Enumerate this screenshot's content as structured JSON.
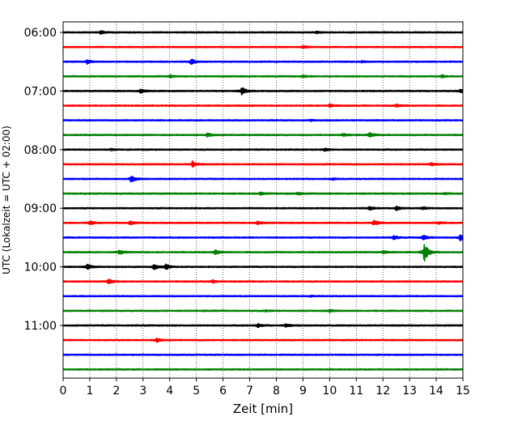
{
  "chart_data": {
    "type": "line",
    "title": "",
    "xlabel": "Zeit  [min]",
    "ylabel": "UTC (Lokalzeit = UTC + 02:00)",
    "xlim": [
      0,
      15
    ],
    "x_ticks": [
      "0",
      "1",
      "2",
      "3",
      "4",
      "5",
      "6",
      "7",
      "8",
      "9",
      "10",
      "11",
      "12",
      "13",
      "14",
      "15"
    ],
    "y_tick_labels": [
      "06:00",
      "07:00",
      "08:00",
      "09:00",
      "10:00",
      "11:00"
    ],
    "grid": "vertical dotted lines at each minute",
    "trace_interval_minutes": 15,
    "colors_cycle": [
      "#000000",
      "#ff0000",
      "#0000ff",
      "#008000"
    ],
    "traces": [
      {
        "start": "06:00",
        "color": "#000000",
        "events": [
          {
            "t": 1.4,
            "amp": 0.25
          },
          {
            "t": 9.5,
            "amp": 0.15
          }
        ]
      },
      {
        "start": "06:15",
        "color": "#ff0000",
        "events": [
          {
            "t": 9.0,
            "amp": 0.15
          }
        ]
      },
      {
        "start": "06:30",
        "color": "#0000ff",
        "events": [
          {
            "t": 0.9,
            "amp": 0.3
          },
          {
            "t": 4.8,
            "amp": 0.45
          },
          {
            "t": 11.2,
            "amp": 0.12
          }
        ]
      },
      {
        "start": "06:45",
        "color": "#008000",
        "events": [
          {
            "t": 4.0,
            "amp": 0.2
          },
          {
            "t": 9.0,
            "amp": 0.18
          },
          {
            "t": 14.2,
            "amp": 0.2
          }
        ]
      },
      {
        "start": "07:00",
        "color": "#000000",
        "events": [
          {
            "t": 2.9,
            "amp": 0.3
          },
          {
            "t": 6.7,
            "amp": 0.6
          },
          {
            "t": 14.9,
            "amp": 0.25
          }
        ]
      },
      {
        "start": "07:15",
        "color": "#ff0000",
        "events": [
          {
            "t": 10.0,
            "amp": 0.2
          },
          {
            "t": 12.5,
            "amp": 0.2
          }
        ]
      },
      {
        "start": "07:30",
        "color": "#0000ff",
        "events": [
          {
            "t": 9.3,
            "amp": 0.1
          }
        ]
      },
      {
        "start": "07:45",
        "color": "#008000",
        "events": [
          {
            "t": 5.4,
            "amp": 0.3
          },
          {
            "t": 10.5,
            "amp": 0.2
          },
          {
            "t": 11.5,
            "amp": 0.35
          }
        ]
      },
      {
        "start": "08:00",
        "color": "#000000",
        "events": [
          {
            "t": 9.8,
            "amp": 0.2
          },
          {
            "t": 1.8,
            "amp": 0.12
          }
        ]
      },
      {
        "start": "08:15",
        "color": "#ff0000",
        "events": [
          {
            "t": 4.85,
            "amp": 0.45
          },
          {
            "t": 13.8,
            "amp": 0.2
          }
        ]
      },
      {
        "start": "08:30",
        "color": "#0000ff",
        "events": [
          {
            "t": 2.55,
            "amp": 0.6
          },
          {
            "t": 10.1,
            "amp": 0.12
          }
        ]
      },
      {
        "start": "08:45",
        "color": "#008000",
        "events": [
          {
            "t": 7.4,
            "amp": 0.18
          },
          {
            "t": 8.8,
            "amp": 0.2
          },
          {
            "t": 14.3,
            "amp": 0.12
          }
        ]
      },
      {
        "start": "09:00",
        "color": "#000000",
        "events": [
          {
            "t": 11.5,
            "amp": 0.25
          },
          {
            "t": 12.5,
            "amp": 0.3
          },
          {
            "t": 13.5,
            "amp": 0.2
          }
        ]
      },
      {
        "start": "09:15",
        "color": "#ff0000",
        "events": [
          {
            "t": 1.0,
            "amp": 0.3
          },
          {
            "t": 2.5,
            "amp": 0.3
          },
          {
            "t": 7.3,
            "amp": 0.25
          },
          {
            "t": 11.65,
            "amp": 0.4
          },
          {
            "t": 14.1,
            "amp": 0.2
          }
        ]
      },
      {
        "start": "09:30",
        "color": "#0000ff",
        "events": [
          {
            "t": 12.4,
            "amp": 0.35
          },
          {
            "t": 13.5,
            "amp": 0.4
          },
          {
            "t": 14.9,
            "amp": 0.6
          }
        ]
      },
      {
        "start": "09:45",
        "color": "#008000",
        "events": [
          {
            "t": 2.1,
            "amp": 0.35
          },
          {
            "t": 5.7,
            "amp": 0.45
          },
          {
            "t": 12.0,
            "amp": 0.2
          },
          {
            "t": 13.55,
            "amp": 1.6
          }
        ]
      },
      {
        "start": "10:00",
        "color": "#000000",
        "events": [
          {
            "t": 0.9,
            "amp": 0.45
          },
          {
            "t": 3.4,
            "amp": 0.5
          },
          {
            "t": 3.85,
            "amp": 0.45
          }
        ]
      },
      {
        "start": "10:15",
        "color": "#ff0000",
        "events": [
          {
            "t": 1.7,
            "amp": 0.4
          },
          {
            "t": 5.6,
            "amp": 0.2
          }
        ]
      },
      {
        "start": "10:30",
        "color": "#0000ff",
        "events": [
          {
            "t": 9.3,
            "amp": 0.08
          }
        ]
      },
      {
        "start": "10:45",
        "color": "#008000",
        "events": [
          {
            "t": 10.0,
            "amp": 0.18
          },
          {
            "t": 7.6,
            "amp": 0.12
          }
        ]
      },
      {
        "start": "11:00",
        "color": "#000000",
        "events": [
          {
            "t": 7.3,
            "amp": 0.3
          },
          {
            "t": 8.35,
            "amp": 0.3
          }
        ]
      },
      {
        "start": "11:15",
        "color": "#ff0000",
        "events": [
          {
            "t": 3.5,
            "amp": 0.35
          }
        ]
      },
      {
        "start": "11:30",
        "color": "#0000ff",
        "events": []
      },
      {
        "start": "11:45",
        "color": "#008000",
        "events": []
      }
    ]
  }
}
